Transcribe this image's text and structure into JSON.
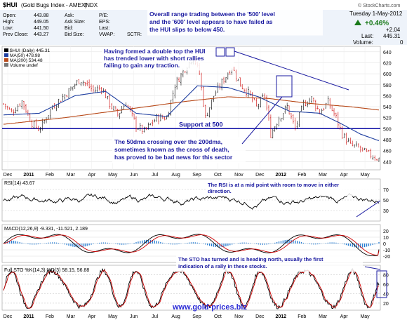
{
  "header": {
    "symbol": "$HUI",
    "name": "(Gold Bugs Index - AMEX)",
    "exchange": "INDX",
    "watermark": "© StockCharts.com",
    "date": "Tuesday 1-May-2012",
    "change_pct": "+0.46%",
    "change_pct_icon": "up-arrow-icon",
    "change": "+2.04",
    "last_label": "Last:",
    "last": "445.31",
    "volume_label": "Volume:",
    "volume": "0",
    "stats": [
      {
        "label": "Open:",
        "value": "443.88"
      },
      {
        "label": "High:",
        "value": "449.05"
      },
      {
        "label": "Low:",
        "value": "441.50"
      },
      {
        "label": "Prev Close:",
        "value": "443.27"
      }
    ],
    "stats2": [
      {
        "label": "Ask:",
        "value": ""
      },
      {
        "label": "Ask Size:",
        "value": ""
      },
      {
        "label": "Bid:",
        "value": ""
      },
      {
        "label": "Bid Size:",
        "value": ""
      }
    ],
    "stats3": [
      "P/E:",
      "EPS:",
      "Last:",
      "VWAP:"
    ],
    "sctr": "SCTR:"
  },
  "colors": {
    "price_up": "#000000",
    "price_down": "#cc0000",
    "ma50": "#1f3fa0",
    "ma200": "#b84a1a",
    "annotation": "#1a1aa0",
    "url": "#2a2ad6",
    "rsi": "#000000",
    "macd": "#000000",
    "signal": "#cc0000",
    "hist": "#1f78d0",
    "sto_k": "#000000",
    "sto_d": "#cc0000"
  },
  "chart_data": [
    {
      "type": "candlestick",
      "legend": [
        {
          "label": "$HUI (Daily) 445.31"
        },
        {
          "label": "MA(50) 478.98"
        },
        {
          "label": "MA(200) 534.48"
        },
        {
          "label": "Volume undef"
        }
      ],
      "y_ticks": [
        440,
        460,
        480,
        500,
        520,
        540,
        560,
        580,
        600,
        620,
        640
      ],
      "ylim": [
        425,
        650
      ],
      "x_months": [
        "Dec",
        "2011",
        "Feb",
        "Mar",
        "Apr",
        "May",
        "Jun",
        "Jul",
        "Aug",
        "Sep",
        "Oct",
        "Nov",
        "Dec",
        "2012",
        "Feb",
        "Mar",
        "Apr",
        "May"
      ],
      "price_anchors": [
        [
          0,
          545
        ],
        [
          8,
          530
        ],
        [
          18,
          550
        ],
        [
          28,
          510
        ],
        [
          35,
          498
        ],
        [
          48,
          540
        ],
        [
          62,
          565
        ],
        [
          75,
          590
        ],
        [
          88,
          570
        ],
        [
          96,
          575
        ],
        [
          104,
          545
        ],
        [
          112,
          525
        ],
        [
          120,
          548
        ],
        [
          130,
          505
        ],
        [
          138,
          495
        ],
        [
          150,
          520
        ],
        [
          160,
          520
        ],
        [
          168,
          580
        ],
        [
          178,
          610
        ],
        [
          186,
          632
        ],
        [
          192,
          600
        ],
        [
          198,
          520
        ],
        [
          206,
          560
        ],
        [
          216,
          590
        ],
        [
          224,
          612
        ],
        [
          232,
          580
        ],
        [
          240,
          565
        ],
        [
          248,
          540
        ],
        [
          256,
          560
        ],
        [
          262,
          490
        ],
        [
          270,
          520
        ],
        [
          278,
          540
        ],
        [
          286,
          500
        ],
        [
          294,
          545
        ],
        [
          302,
          555
        ],
        [
          310,
          530
        ],
        [
          318,
          548
        ],
        [
          326,
          520
        ],
        [
          332,
          490
        ],
        [
          340,
          470
        ],
        [
          348,
          465
        ],
        [
          356,
          455
        ],
        [
          362,
          450
        ],
        [
          368,
          445
        ]
      ],
      "ma50_anchors": [
        [
          0,
          525
        ],
        [
          35,
          528
        ],
        [
          70,
          560
        ],
        [
          100,
          568
        ],
        [
          130,
          528
        ],
        [
          160,
          522
        ],
        [
          190,
          578
        ],
        [
          220,
          575
        ],
        [
          250,
          558
        ],
        [
          280,
          532
        ],
        [
          310,
          528
        ],
        [
          330,
          510
        ],
        [
          350,
          490
        ],
        [
          368,
          478
        ]
      ],
      "ma200_anchors": [
        [
          0,
          508
        ],
        [
          60,
          520
        ],
        [
          120,
          535
        ],
        [
          180,
          550
        ],
        [
          220,
          558
        ],
        [
          260,
          555
        ],
        [
          300,
          546
        ],
        [
          340,
          540
        ],
        [
          368,
          534
        ]
      ],
      "support": {
        "value": 500,
        "label": "Support at 500"
      },
      "annotations": [
        "Overall range trading between the '500' level\nand the '600' level appears to have failed as\nthe HUI slips to below 450.",
        "Having formed a double top the HUI\nhas trended lower with short rallies\nfailing to gain any traction.",
        "The 50dma crossing over the 200dma,\nsometimes known as the cross of death,\nhas proved to be bad news for this sector"
      ]
    },
    {
      "type": "line",
      "legend": "RSI(14) 43.67",
      "y_ticks": [
        30,
        50,
        70
      ],
      "ylim": [
        10,
        90
      ],
      "last_value": 43.67,
      "annotation": "The RSI is at a mid point with room to move in either\ndirection."
    },
    {
      "type": "line",
      "legend_prefix": "MACD(12,26,9)",
      "macd": -9.331,
      "signal": -11.521,
      "histogram": 2.189,
      "y_ticks": [
        -20,
        -10,
        0,
        10,
        20
      ],
      "ylim": [
        -30,
        30
      ]
    },
    {
      "type": "line",
      "legend_prefix": "Full STO %K(14,3) %D(3)",
      "k": 58.15,
      "d": 56.88,
      "y_ticks": [
        20,
        40,
        60,
        80
      ],
      "ylim": [
        5,
        100
      ],
      "annotation": "The STO has turned and is heading north, usually the first\nindication of a rally in these stocks."
    }
  ],
  "footer": {
    "url": "www.gold-prices.biz"
  }
}
